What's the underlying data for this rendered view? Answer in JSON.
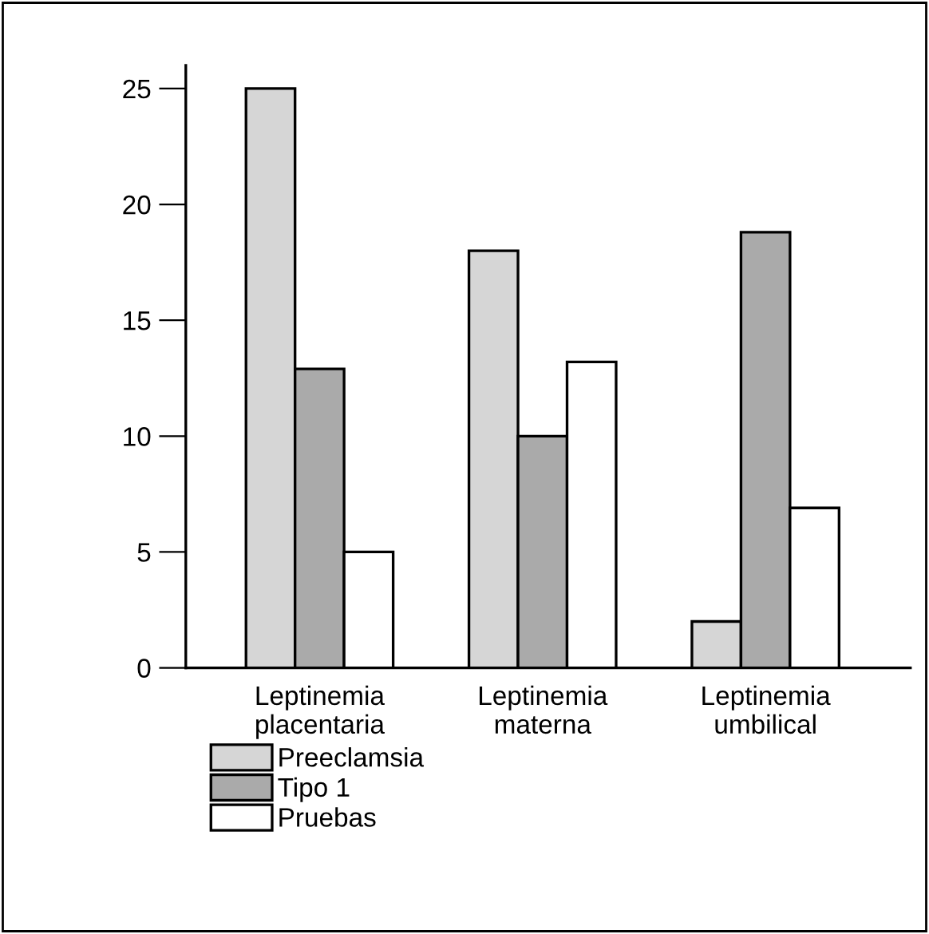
{
  "chart_data": {
    "type": "bar",
    "categories": [
      "Leptinemia\nplacentaria",
      "Leptinemia\nmaterna",
      "Leptinemia\numbilical"
    ],
    "series": [
      {
        "name": "Preeclamsia",
        "color": "#d6d6d6",
        "values": [
          25,
          18,
          2
        ]
      },
      {
        "name": "Tipo 1",
        "color": "#aaaaaa",
        "values": [
          12.9,
          10,
          18.8
        ]
      },
      {
        "name": "Pruebas",
        "color": "#ffffff",
        "values": [
          5,
          13.2,
          6.9
        ]
      }
    ],
    "ylim": [
      0,
      26
    ],
    "yticks": [
      0,
      5,
      10,
      15,
      20,
      25
    ],
    "grid": false,
    "legend": "bottom left"
  }
}
